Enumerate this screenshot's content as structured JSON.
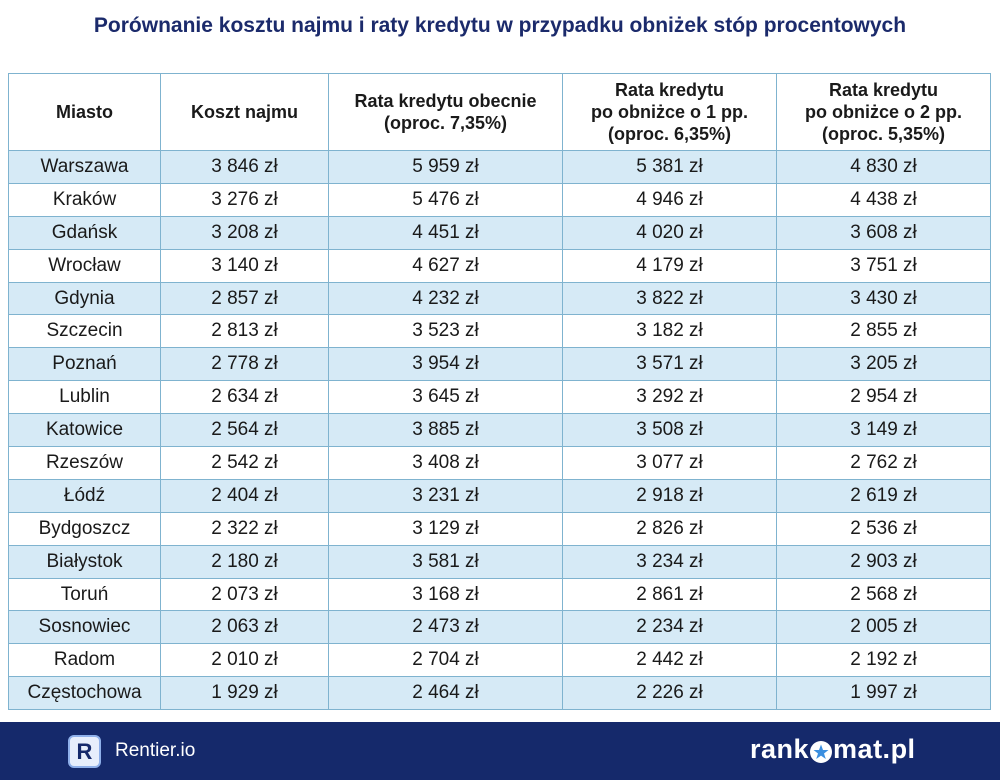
{
  "title": "Porównanie kosztu najmu i raty kredytu w przypadku obniżek stóp procentowych",
  "table": {
    "headers": [
      {
        "lines": [
          "Miasto"
        ]
      },
      {
        "lines": [
          "Koszt najmu"
        ]
      },
      {
        "lines": [
          "Rata kredytu obecnie",
          "(oproc. 7,35%)"
        ]
      },
      {
        "lines": [
          "Rata kredytu",
          "po obniżce o 1 pp.",
          "(oproc. 6,35%)"
        ]
      },
      {
        "lines": [
          "Rata kredytu",
          "po obniżce o 2 pp.",
          "(oproc. 5,35%)"
        ]
      }
    ],
    "rows": [
      [
        "Warszawa",
        "3 846 zł",
        "5 959 zł",
        "5 381 zł",
        "4 830 zł"
      ],
      [
        "Kraków",
        "3 276 zł",
        "5 476 zł",
        "4 946 zł",
        "4 438 zł"
      ],
      [
        "Gdańsk",
        "3 208 zł",
        "4 451 zł",
        "4 020 zł",
        "3 608 zł"
      ],
      [
        "Wrocław",
        "3 140 zł",
        "4 627 zł",
        "4 179 zł",
        "3 751 zł"
      ],
      [
        "Gdynia",
        "2 857 zł",
        "4 232 zł",
        "3 822 zł",
        "3 430 zł"
      ],
      [
        "Szczecin",
        "2 813 zł",
        "3 523 zł",
        "3 182 zł",
        "2 855 zł"
      ],
      [
        "Poznań",
        "2 778 zł",
        "3 954 zł",
        "3 571 zł",
        "3 205 zł"
      ],
      [
        "Lublin",
        "2 634 zł",
        "3 645 zł",
        "3 292 zł",
        "2 954 zł"
      ],
      [
        "Katowice",
        "2 564 zł",
        "3 885 zł",
        "3 508 zł",
        "3 149 zł"
      ],
      [
        "Rzeszów",
        "2 542 zł",
        "3 408 zł",
        "3 077 zł",
        "2 762 zł"
      ],
      [
        "Łódź",
        "2 404 zł",
        "3 231 zł",
        "2 918 zł",
        "2 619 zł"
      ],
      [
        "Bydgoszcz",
        "2 322 zł",
        "3 129 zł",
        "2 826 zł",
        "2 536 zł"
      ],
      [
        "Białystok",
        "2 180 zł",
        "3 581 zł",
        "3 234 zł",
        "2 903 zł"
      ],
      [
        "Toruń",
        "2 073 zł",
        "3 168 zł",
        "2 861 zł",
        "2 568 zł"
      ],
      [
        "Sosnowiec",
        "2 063 zł",
        "2 473 zł",
        "2 234 zł",
        "2 005 zł"
      ],
      [
        "Radom",
        "2 010 zł",
        "2 704 zł",
        "2 442 zł",
        "2 192 zł"
      ],
      [
        "Częstochowa",
        "1 929 zł",
        "2 464 zł",
        "2 226 zł",
        "1 997 zł"
      ]
    ]
  },
  "footer": {
    "rentier_badge": "R",
    "rentier_label": "Rentier.io",
    "rankomat_logo": "rankomat.pl",
    "rankomat_prefix": "rank",
    "rankomat_suffix": "mat.pl",
    "background_color": "#15296b",
    "logo_icon": "star-in-circle-icon"
  },
  "colors": {
    "title": "#1b2a6b",
    "row_stripe": "#d6eaf6",
    "border": "#7fb3cf"
  }
}
